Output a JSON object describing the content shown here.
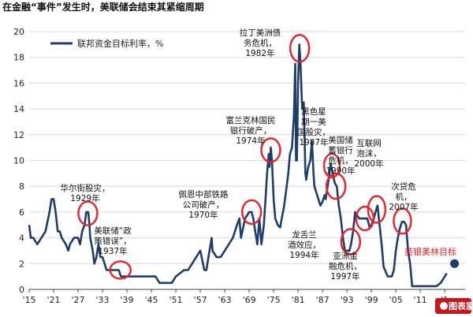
{
  "chart_data": {
    "type": "line",
    "title": "在金融“事件”发生时，美联储会结束其紧缩周期",
    "legend": [
      "联邦资金目标利率，%"
    ],
    "ylim": [
      0,
      20
    ],
    "xlim": [
      1915,
      2022
    ],
    "y_ticks": [
      "0",
      "2",
      "4",
      "6",
      "8",
      "10",
      "12",
      "14",
      "16",
      "18",
      "20"
    ],
    "x_tick_values": [
      1915,
      1921,
      1927,
      1933,
      1939,
      1945,
      1951,
      1957,
      1963,
      1969,
      1975,
      1981,
      1987,
      1993,
      1999,
      2005,
      2011,
      2017
    ],
    "x_tick_labels": [
      "'15",
      "'21",
      "'27",
      "'33",
      "'39",
      "'45",
      "'51",
      "'57",
      "'63",
      "'69",
      "'75",
      "'81",
      "'87",
      "'93",
      "'99",
      "'05",
      "'11",
      "'1"
    ],
    "grid": true,
    "line_color": "#1f3d6b",
    "highlight_color": "#e5232a",
    "series": [
      {
        "name": "联邦资金目标利率，%",
        "points": [
          [
            1915,
            5.0
          ],
          [
            1915.4,
            4.0
          ],
          [
            1916,
            4.0
          ],
          [
            1917,
            3.5
          ],
          [
            1918,
            4.0
          ],
          [
            1919,
            4.5
          ],
          [
            1920,
            6.0
          ],
          [
            1920.5,
            7.0
          ],
          [
            1921,
            7.0
          ],
          [
            1921.5,
            6.0
          ],
          [
            1922,
            4.5
          ],
          [
            1922.5,
            4.5
          ],
          [
            1923,
            4.0
          ],
          [
            1924,
            3.5
          ],
          [
            1924.6,
            3.0
          ],
          [
            1925,
            3.5
          ],
          [
            1926,
            4.0
          ],
          [
            1927,
            4.0
          ],
          [
            1927.5,
            3.5
          ],
          [
            1928,
            4.5
          ],
          [
            1928.6,
            5.0
          ],
          [
            1929,
            6.0
          ],
          [
            1929.5,
            6.0
          ],
          [
            1929.8,
            5.0
          ],
          [
            1930,
            4.0
          ],
          [
            1930.6,
            3.0
          ],
          [
            1931,
            2.0
          ],
          [
            1931.5,
            2.5
          ],
          [
            1932,
            3.5
          ],
          [
            1932.5,
            2.5
          ],
          [
            1933,
            2.5
          ],
          [
            1933.5,
            2.0
          ],
          [
            1934,
            1.5
          ],
          [
            1935,
            1.5
          ],
          [
            1936,
            1.5
          ],
          [
            1937,
            1.5
          ],
          [
            1937.5,
            1.0
          ],
          [
            1938,
            1.0
          ],
          [
            1939,
            1.0
          ],
          [
            1941,
            1.0
          ],
          [
            1942,
            1.0
          ],
          [
            1944,
            1.0
          ],
          [
            1946,
            1.0
          ],
          [
            1947,
            0.5
          ],
          [
            1948,
            0.5
          ],
          [
            1949,
            0.5
          ],
          [
            1950,
            0.5
          ],
          [
            1951,
            1.0
          ],
          [
            1953,
            1.5
          ],
          [
            1954,
            1.5
          ],
          [
            1955,
            2.0
          ],
          [
            1956,
            2.5
          ],
          [
            1957,
            3.0
          ],
          [
            1958,
            1.5
          ],
          [
            1958.5,
            1.5
          ],
          [
            1959,
            2.5
          ],
          [
            1959.8,
            4.0
          ],
          [
            1960,
            3.0
          ],
          [
            1961,
            2.5
          ],
          [
            1962,
            2.5
          ],
          [
            1963,
            3.0
          ],
          [
            1964,
            3.5
          ],
          [
            1965,
            4.0
          ],
          [
            1966,
            5.0
          ],
          [
            1966.6,
            5.5
          ],
          [
            1967,
            4.0
          ],
          [
            1968,
            5.5
          ],
          [
            1969,
            6.0
          ],
          [
            1969.6,
            6.0
          ],
          [
            1970,
            5.5
          ],
          [
            1970.5,
            4.5
          ],
          [
            1971,
            3.5
          ],
          [
            1971.5,
            5.5
          ],
          [
            1972,
            3.5
          ],
          [
            1972.6,
            5.0
          ],
          [
            1973,
            7.0
          ],
          [
            1973.4,
            9.0
          ],
          [
            1973.8,
            10.5
          ],
          [
            1974,
            9.5
          ],
          [
            1974.3,
            11.0
          ],
          [
            1974.6,
            10.0
          ],
          [
            1975,
            7.0
          ],
          [
            1975.4,
            5.5
          ],
          [
            1976,
            5.0
          ],
          [
            1976.6,
            4.8
          ],
          [
            1977,
            5.5
          ],
          [
            1977.6,
            6.5
          ],
          [
            1978,
            7.5
          ],
          [
            1978.6,
            9.0
          ],
          [
            1979,
            10.5
          ],
          [
            1979.5,
            11.0
          ],
          [
            1980,
            13.5
          ],
          [
            1980.3,
            17.5
          ],
          [
            1980.5,
            10.0
          ],
          [
            1980.7,
            10.0
          ],
          [
            1981,
            16.0
          ],
          [
            1981.3,
            19.0
          ],
          [
            1981.6,
            17.5
          ],
          [
            1982,
            14.0
          ],
          [
            1982.4,
            14.5
          ],
          [
            1982.8,
            9.0
          ],
          [
            1983,
            8.5
          ],
          [
            1983.5,
            9.5
          ],
          [
            1984,
            10.0
          ],
          [
            1984.4,
            11.5
          ],
          [
            1984.8,
            9.0
          ],
          [
            1985,
            8.0
          ],
          [
            1986,
            7.0
          ],
          [
            1986.5,
            6.5
          ],
          [
            1987,
            6.8
          ],
          [
            1987.5,
            7.3
          ],
          [
            1987.8,
            7.0
          ],
          [
            1988,
            7.5
          ],
          [
            1988.5,
            8.5
          ],
          [
            1989,
            9.75
          ],
          [
            1989.5,
            9.0
          ],
          [
            1990,
            8.25
          ],
          [
            1990.5,
            8.0
          ],
          [
            1991,
            6.5
          ],
          [
            1991.5,
            5.5
          ],
          [
            1992,
            4.0
          ],
          [
            1992.5,
            3.0
          ],
          [
            1993,
            3.0
          ],
          [
            1993.6,
            3.0
          ],
          [
            1994,
            3.5
          ],
          [
            1994.5,
            4.5
          ],
          [
            1995,
            6.0
          ],
          [
            1995.5,
            5.75
          ],
          [
            1996,
            5.5
          ],
          [
            1997,
            5.5
          ],
          [
            1997.5,
            5.5
          ],
          [
            1998,
            5.5
          ],
          [
            1998.6,
            4.75
          ],
          [
            1999,
            5.0
          ],
          [
            1999.6,
            5.5
          ],
          [
            2000,
            6.0
          ],
          [
            2000.5,
            6.5
          ],
          [
            2001,
            5.0
          ],
          [
            2001.5,
            3.5
          ],
          [
            2002,
            1.75
          ],
          [
            2003,
            1.0
          ],
          [
            2004,
            1.0
          ],
          [
            2004.5,
            1.5
          ],
          [
            2005,
            3.0
          ],
          [
            2005.5,
            4.0
          ],
          [
            2006,
            4.75
          ],
          [
            2006.5,
            5.25
          ],
          [
            2007,
            5.25
          ],
          [
            2007.5,
            5.0
          ],
          [
            2008,
            3.0
          ],
          [
            2008.5,
            2.0
          ],
          [
            2009,
            0.25
          ],
          [
            2011,
            0.25
          ],
          [
            2013,
            0.25
          ],
          [
            2015,
            0.25
          ],
          [
            2016,
            0.5
          ],
          [
            2017,
            1.0
          ],
          [
            2017.5,
            1.25
          ]
        ]
      }
    ],
    "highlights": [
      {
        "x": 1929.4,
        "y": 5.9,
        "label": "华尔街股灾，\n1929年"
      },
      {
        "x": 1937.4,
        "y": 1.5,
        "label": "美联储“政\n策错误”，\n1937年"
      },
      {
        "x": 1969.6,
        "y": 6.0,
        "label": "佩恩中部铁路\n公司破产，\n1970年"
      },
      {
        "x": 1974.3,
        "y": 10.8,
        "label": "富兰克林国民\n银行破产，\n1974年"
      },
      {
        "x": 1981.4,
        "y": 18.7,
        "label": "拉丁美洲债\n务危机，\n1982年"
      },
      {
        "x": 1989.3,
        "y": 9.6,
        "label": "黑色星\n期一美\n国股灾，\n1987年"
      },
      {
        "x": 1990.3,
        "y": 8.0,
        "label": "美国储\n蓄银行\n危机，\n1990年"
      },
      {
        "x": 1993.9,
        "y": 3.7,
        "label": "龙舌兰\n酒效应，\n1994年"
      },
      {
        "x": 1997.4,
        "y": 5.5,
        "label": "亚洲金\n融危机，\n1997年"
      },
      {
        "x": 2000.3,
        "y": 6.2,
        "label": "互联网\n泡沫，\n2000年"
      },
      {
        "x": 2006.6,
        "y": 5.3,
        "label": "次贷危\n机，\n2007年"
      }
    ],
    "target": {
      "x": 2019.4,
      "y": 2.0,
      "label": "美银美林目标"
    }
  },
  "logo": {
    "text": "图表家"
  }
}
